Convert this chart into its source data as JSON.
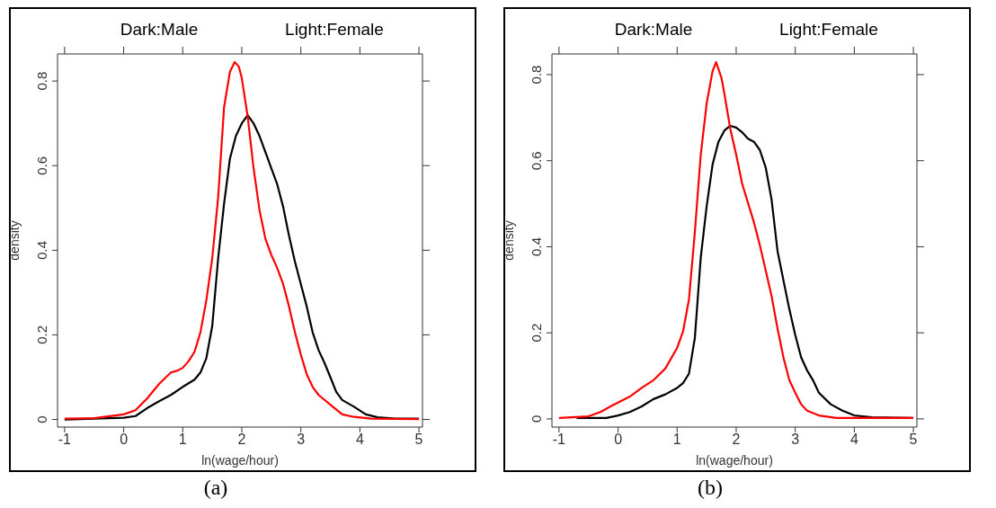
{
  "chart_data": [
    {
      "type": "line",
      "xlabel": "ln(wage/hour)",
      "ylabel": "density",
      "annotations": [
        "Dark:Male",
        "Light:Female",
        "(a)"
      ],
      "marker": "none",
      "xlim": [
        -1.12,
        5.06
      ],
      "ylim": [
        -0.018,
        0.864
      ],
      "xticks": [
        -1,
        0,
        1,
        2,
        3,
        4,
        5
      ],
      "yticks": [
        0,
        0.2,
        0.4,
        0.6,
        0.8
      ],
      "series": [
        {
          "color": "#000000",
          "x": [
            -1,
            0,
            0.2,
            0.4,
            0.6,
            0.8,
            1.0,
            1.2,
            1.3,
            1.4,
            1.5,
            1.6,
            1.7,
            1.8,
            1.9,
            2.0,
            2.1,
            2.2,
            2.3,
            2.4,
            2.5,
            2.6,
            2.7,
            2.8,
            2.9,
            3.0,
            3.1,
            3.2,
            3.3,
            3.4,
            3.5,
            3.6,
            3.7,
            3.9,
            4.1,
            4.3,
            4.6,
            5.0
          ],
          "values": [
            0,
            0.004,
            0.008,
            0.027,
            0.043,
            0.058,
            0.077,
            0.094,
            0.111,
            0.145,
            0.221,
            0.381,
            0.51,
            0.617,
            0.67,
            0.7,
            0.719,
            0.7,
            0.67,
            0.632,
            0.594,
            0.556,
            0.503,
            0.434,
            0.373,
            0.32,
            0.267,
            0.206,
            0.164,
            0.134,
            0.1,
            0.065,
            0.046,
            0.03,
            0.012,
            0.005,
            0.002,
            0.002
          ]
        },
        {
          "color": "#ff0000",
          "x": [
            -1,
            -0.5,
            0,
            0.2,
            0.4,
            0.6,
            0.8,
            0.9,
            1.0,
            1.1,
            1.2,
            1.3,
            1.4,
            1.5,
            1.6,
            1.7,
            1.8,
            1.88,
            1.95,
            2.0,
            2.1,
            2.2,
            2.3,
            2.4,
            2.5,
            2.6,
            2.7,
            2.8,
            2.9,
            3.0,
            3.1,
            3.2,
            3.3,
            3.5,
            3.7,
            3.9,
            4.2,
            5.0
          ],
          "values": [
            0.002,
            0.003,
            0.012,
            0.022,
            0.05,
            0.084,
            0.111,
            0.115,
            0.122,
            0.138,
            0.16,
            0.206,
            0.282,
            0.381,
            0.525,
            0.738,
            0.822,
            0.845,
            0.834,
            0.807,
            0.716,
            0.594,
            0.495,
            0.427,
            0.389,
            0.358,
            0.32,
            0.267,
            0.206,
            0.153,
            0.107,
            0.077,
            0.058,
            0.035,
            0.012,
            0.006,
            0.002,
            0.001
          ]
        }
      ]
    },
    {
      "type": "line",
      "xlabel": "ln(wage/hour)",
      "ylabel": "density",
      "annotations": [
        "Dark:Male",
        "Light:Female",
        "(b)"
      ],
      "marker": "none",
      "xlim": [
        -1.12,
        5.06
      ],
      "ylim": [
        -0.019,
        0.848
      ],
      "xticks": [
        -1,
        0,
        1,
        2,
        3,
        4,
        5
      ],
      "yticks": [
        0,
        0.2,
        0.4,
        0.6,
        0.8
      ],
      "series": [
        {
          "color": "#000000",
          "x": [
            -0.7,
            -0.2,
            0,
            0.2,
            0.4,
            0.6,
            0.8,
            1.0,
            1.1,
            1.2,
            1.3,
            1.4,
            1.5,
            1.6,
            1.7,
            1.8,
            1.9,
            2.0,
            2.1,
            2.2,
            2.3,
            2.4,
            2.5,
            2.6,
            2.7,
            2.8,
            2.9,
            3.0,
            3.1,
            3.2,
            3.3,
            3.4,
            3.6,
            3.8,
            4.0,
            4.3,
            5.0
          ],
          "values": [
            0.002,
            0.002,
            0.008,
            0.016,
            0.029,
            0.046,
            0.057,
            0.072,
            0.083,
            0.105,
            0.188,
            0.375,
            0.494,
            0.591,
            0.644,
            0.67,
            0.681,
            0.677,
            0.666,
            0.651,
            0.644,
            0.625,
            0.584,
            0.509,
            0.39,
            0.322,
            0.255,
            0.195,
            0.143,
            0.113,
            0.09,
            0.061,
            0.034,
            0.019,
            0.008,
            0.004,
            0.002
          ]
        },
        {
          "color": "#ff0000",
          "x": [
            -1,
            -0.5,
            -0.3,
            -0.1,
            0,
            0.2,
            0.4,
            0.6,
            0.8,
            1.0,
            1.1,
            1.2,
            1.3,
            1.4,
            1.5,
            1.6,
            1.66,
            1.75,
            1.8,
            1.9,
            2.0,
            2.1,
            2.2,
            2.3,
            2.4,
            2.5,
            2.6,
            2.7,
            2.8,
            2.9,
            3.0,
            3.1,
            3.2,
            3.4,
            3.7,
            5.0
          ],
          "values": [
            0.002,
            0.006,
            0.016,
            0.031,
            0.038,
            0.052,
            0.072,
            0.09,
            0.117,
            0.165,
            0.203,
            0.277,
            0.434,
            0.614,
            0.733,
            0.808,
            0.829,
            0.793,
            0.756,
            0.674,
            0.614,
            0.547,
            0.502,
            0.457,
            0.404,
            0.345,
            0.285,
            0.21,
            0.143,
            0.09,
            0.061,
            0.034,
            0.019,
            0.008,
            0.002,
            0.002
          ]
        }
      ]
    }
  ]
}
